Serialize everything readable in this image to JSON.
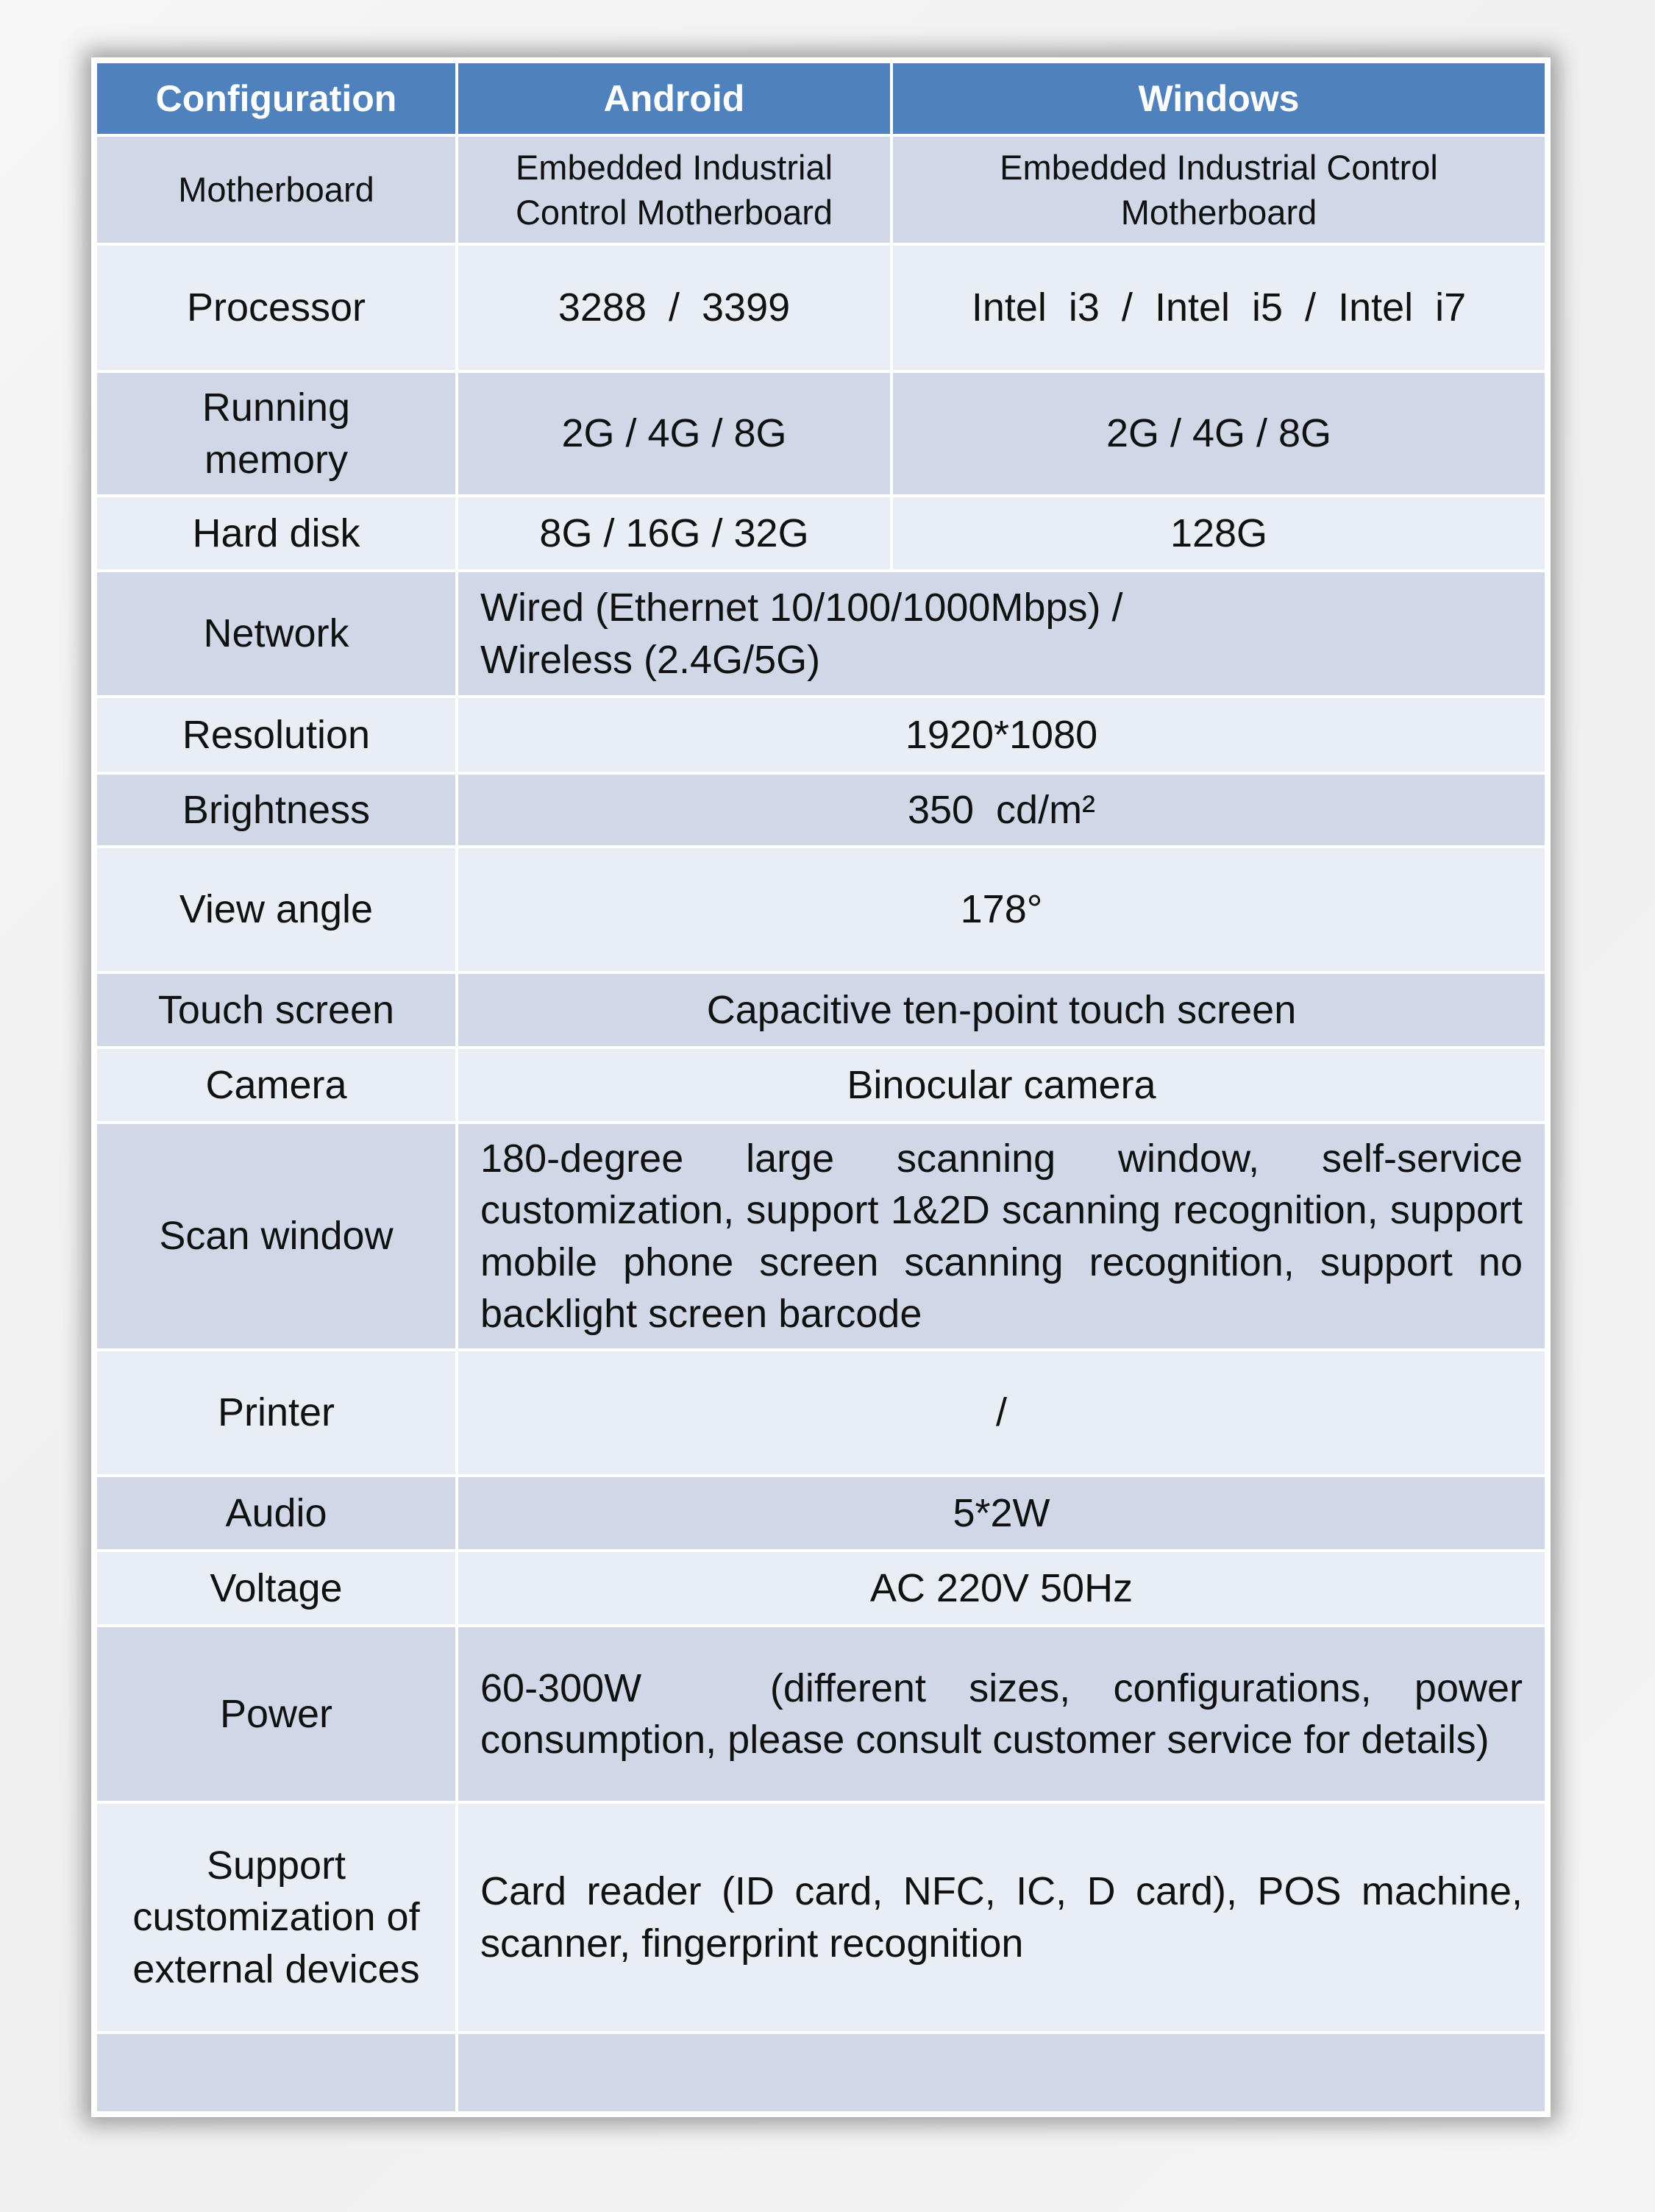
{
  "header": {
    "col1": "Configuration",
    "col2": "Android",
    "col3": "Windows"
  },
  "rows": [
    {
      "label": "Motherboard",
      "android": "Embedded Industrial Control Motherboard",
      "windows": "Embedded Industrial Control Motherboard"
    },
    {
      "label": "Processor",
      "android": "3288  /  3399",
      "windows": "Intel  i3  /  Intel  i5  /  Intel  i7"
    },
    {
      "label": "Running memory",
      "android": "2G / 4G / 8G",
      "windows": "2G / 4G / 8G"
    },
    {
      "label": "Hard disk",
      "android": "8G / 16G / 32G",
      "windows": "128G"
    },
    {
      "label": "Network",
      "value": "Wired (Ethernet 10/100/1000Mbps) / Wireless (2.4G/5G)"
    },
    {
      "label": "Resolution",
      "value": "1920*1080"
    },
    {
      "label": "Brightness",
      "value": "350  cd/m²"
    },
    {
      "label": "View angle",
      "value": "178°"
    },
    {
      "label": "Touch screen",
      "value": "Capacitive ten-point touch screen"
    },
    {
      "label": "Camera",
      "value": "Binocular camera"
    },
    {
      "label": "Scan window",
      "value": "180-degree large scanning window, self-service customization, support 1&2D scanning recognition, support mobile phone screen scanning recognition, support no backlight screen barcode"
    },
    {
      "label": "Printer",
      "value": "/"
    },
    {
      "label": "Audio",
      "value": "5*2W"
    },
    {
      "label": "Voltage",
      "value": "AC 220V 50Hz"
    },
    {
      "label": "Power",
      "value": "60-300W   (different sizes, configurations, power consumption, please consult customer service for details)"
    },
    {
      "label": "Support customization of external devices",
      "value": "Card reader (ID card, NFC, IC, D card), POS machine, scanner, fingerprint recognition"
    }
  ],
  "colors": {
    "header": "#4f81bd",
    "row_dark": "#d0d8e8",
    "row_light": "#e9edf4"
  }
}
